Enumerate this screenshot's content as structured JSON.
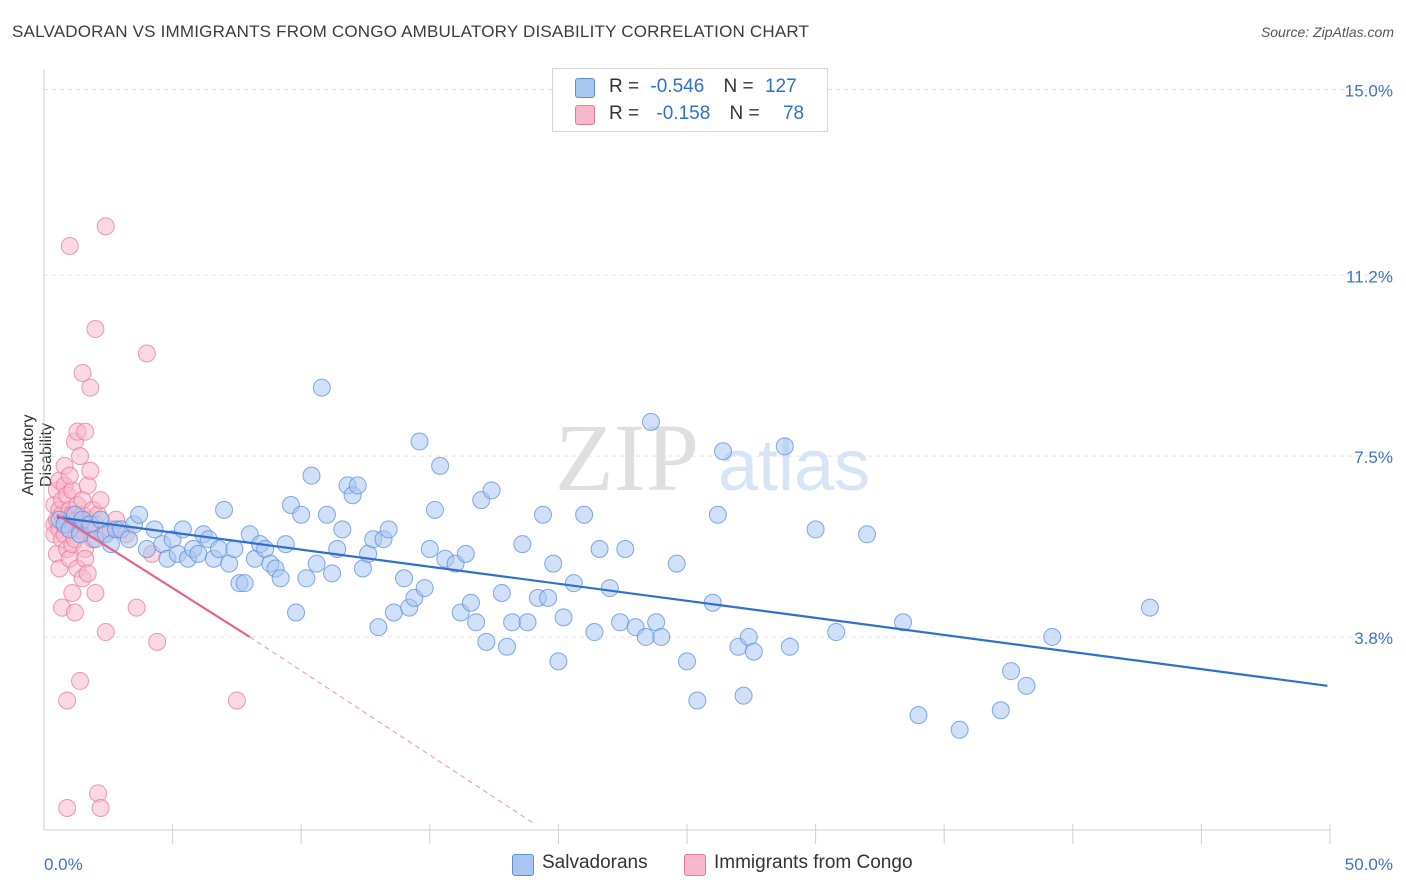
{
  "title": "SALVADORAN VS IMMIGRANTS FROM CONGO AMBULATORY DISABILITY CORRELATION CHART",
  "source": "Source: ZipAtlas.com",
  "watermark": {
    "zip": "ZIP",
    "atlas": "atlas"
  },
  "legend": {
    "rows": [
      {
        "r_label": "R =",
        "r_value": "-0.546",
        "n_label": "N =",
        "n_value": "127",
        "color": "#a9c6f2",
        "border": "#5b8ee0"
      },
      {
        "r_label": "R =",
        "r_value": "-0.158",
        "n_label": "N =",
        "n_value": "78",
        "color": "#f7b8cb",
        "border": "#e8799b"
      }
    ]
  },
  "bottom_legend": [
    {
      "label": "Salvadorans",
      "color": "#a9c6f2",
      "border": "#5b8ee0"
    },
    {
      "label": "Immigrants from Congo",
      "color": "#f7b8cb",
      "border": "#e8799b"
    }
  ],
  "chart_data": {
    "type": "scatter",
    "title": "SALVADORAN VS IMMIGRANTS FROM CONGO AMBULATORY DISABILITY CORRELATION CHART",
    "xlabel": "",
    "ylabel": "Ambulatory Disability",
    "xlim": [
      0,
      50
    ],
    "ylim": [
      -0.15,
      15.4
    ],
    "x_tick_labels": [
      {
        "value": 0,
        "label": "0.0%"
      },
      {
        "value": 50,
        "label": "50.0%"
      }
    ],
    "x_minor_ticks": [
      5,
      10,
      15,
      20,
      25,
      30,
      35,
      40,
      45,
      50
    ],
    "y_ticks": [
      {
        "value": 3.8,
        "label": "3.8%"
      },
      {
        "value": 7.5,
        "label": "7.5%"
      },
      {
        "value": 11.2,
        "label": "11.2%"
      },
      {
        "value": 15.0,
        "label": "15.0%"
      }
    ],
    "grid": true,
    "series": [
      {
        "name": "Salvadorans",
        "color": "#a9c6f2",
        "edge": "#5b8ee0",
        "line_color": "#2f6fd0",
        "trend": {
          "x": [
            0.5,
            49.9
          ],
          "y": [
            6.25,
            2.8
          ]
        },
        "points": [
          [
            0.6,
            6.2
          ],
          [
            0.8,
            6.1
          ],
          [
            1.0,
            6.0
          ],
          [
            1.2,
            6.3
          ],
          [
            1.4,
            5.9
          ],
          [
            1.5,
            6.2
          ],
          [
            1.8,
            6.1
          ],
          [
            2.0,
            5.8
          ],
          [
            2.2,
            6.2
          ],
          [
            2.4,
            5.9
          ],
          [
            2.6,
            5.7
          ],
          [
            2.8,
            6.0
          ],
          [
            3.0,
            6.0
          ],
          [
            3.3,
            5.8
          ],
          [
            3.5,
            6.1
          ],
          [
            3.7,
            6.3
          ],
          [
            4.0,
            5.6
          ],
          [
            4.3,
            6.0
          ],
          [
            4.6,
            5.7
          ],
          [
            4.8,
            5.4
          ],
          [
            5.0,
            5.8
          ],
          [
            5.2,
            5.5
          ],
          [
            5.4,
            6.0
          ],
          [
            5.6,
            5.4
          ],
          [
            5.8,
            5.6
          ],
          [
            6.0,
            5.5
          ],
          [
            6.2,
            5.9
          ],
          [
            6.4,
            5.8
          ],
          [
            6.6,
            5.4
          ],
          [
            6.8,
            5.6
          ],
          [
            7.0,
            6.4
          ],
          [
            7.2,
            5.3
          ],
          [
            7.4,
            5.6
          ],
          [
            7.6,
            4.9
          ],
          [
            7.8,
            4.9
          ],
          [
            8.0,
            5.9
          ],
          [
            8.2,
            5.4
          ],
          [
            8.4,
            5.7
          ],
          [
            8.6,
            5.6
          ],
          [
            8.8,
            5.3
          ],
          [
            9.0,
            5.2
          ],
          [
            9.2,
            5.0
          ],
          [
            9.4,
            5.7
          ],
          [
            9.6,
            6.5
          ],
          [
            9.8,
            4.3
          ],
          [
            10.0,
            6.3
          ],
          [
            10.2,
            5.0
          ],
          [
            10.4,
            7.1
          ],
          [
            10.6,
            5.3
          ],
          [
            10.8,
            8.9
          ],
          [
            11.0,
            6.3
          ],
          [
            11.2,
            5.1
          ],
          [
            11.4,
            5.6
          ],
          [
            11.6,
            6.0
          ],
          [
            11.8,
            6.9
          ],
          [
            12.0,
            6.7
          ],
          [
            12.2,
            6.9
          ],
          [
            12.4,
            5.2
          ],
          [
            12.6,
            5.5
          ],
          [
            12.8,
            5.8
          ],
          [
            13.0,
            4.0
          ],
          [
            13.2,
            5.8
          ],
          [
            13.4,
            6.0
          ],
          [
            13.6,
            4.3
          ],
          [
            14.0,
            5.0
          ],
          [
            14.2,
            4.4
          ],
          [
            14.4,
            4.6
          ],
          [
            14.6,
            7.8
          ],
          [
            14.8,
            4.8
          ],
          [
            15.0,
            5.6
          ],
          [
            15.2,
            6.4
          ],
          [
            15.4,
            7.3
          ],
          [
            15.6,
            5.4
          ],
          [
            16.0,
            5.3
          ],
          [
            16.2,
            4.3
          ],
          [
            16.4,
            5.5
          ],
          [
            16.6,
            4.5
          ],
          [
            16.8,
            4.1
          ],
          [
            17.0,
            6.6
          ],
          [
            17.2,
            3.7
          ],
          [
            17.4,
            6.8
          ],
          [
            17.8,
            4.7
          ],
          [
            18.0,
            3.6
          ],
          [
            18.2,
            4.1
          ],
          [
            18.6,
            5.7
          ],
          [
            18.8,
            4.1
          ],
          [
            19.2,
            4.6
          ],
          [
            19.4,
            6.3
          ],
          [
            19.6,
            4.6
          ],
          [
            19.8,
            5.3
          ],
          [
            20.0,
            3.3
          ],
          [
            20.2,
            4.2
          ],
          [
            20.6,
            4.9
          ],
          [
            21.0,
            6.3
          ],
          [
            21.4,
            3.9
          ],
          [
            21.6,
            5.6
          ],
          [
            22.0,
            4.8
          ],
          [
            22.4,
            4.1
          ],
          [
            22.6,
            5.6
          ],
          [
            23.0,
            4.0
          ],
          [
            23.4,
            3.8
          ],
          [
            23.6,
            8.2
          ],
          [
            23.8,
            4.1
          ],
          [
            24.0,
            3.8
          ],
          [
            24.6,
            5.3
          ],
          [
            25.0,
            3.3
          ],
          [
            25.4,
            2.5
          ],
          [
            26.0,
            4.5
          ],
          [
            26.2,
            6.3
          ],
          [
            26.4,
            7.6
          ],
          [
            27.0,
            3.6
          ],
          [
            27.2,
            2.6
          ],
          [
            27.4,
            3.8
          ],
          [
            27.6,
            3.5
          ],
          [
            28.8,
            7.7
          ],
          [
            29.0,
            3.6
          ],
          [
            30.0,
            6.0
          ],
          [
            30.8,
            3.9
          ],
          [
            32.0,
            5.9
          ],
          [
            33.4,
            4.1
          ],
          [
            34.0,
            2.2
          ],
          [
            35.6,
            1.9
          ],
          [
            37.2,
            2.3
          ],
          [
            37.6,
            3.1
          ],
          [
            38.2,
            2.8
          ],
          [
            39.2,
            3.8
          ],
          [
            43.0,
            4.4
          ]
        ]
      },
      {
        "name": "Immigrants from Congo",
        "color": "#f7b8cb",
        "edge": "#e8799b",
        "line_color": "#e0658f",
        "trend": {
          "x": [
            0.5,
            8.0
          ],
          "y": [
            6.3,
            3.8
          ]
        },
        "trend_dashed": {
          "x": [
            8.0,
            19.0
          ],
          "y": [
            3.8,
            0.0
          ]
        },
        "points": [
          [
            0.4,
            6.1
          ],
          [
            0.4,
            6.5
          ],
          [
            0.4,
            5.9
          ],
          [
            0.5,
            6.8
          ],
          [
            0.5,
            6.2
          ],
          [
            0.5,
            5.5
          ],
          [
            0.6,
            6.4
          ],
          [
            0.6,
            6.0
          ],
          [
            0.6,
            7.0
          ],
          [
            0.6,
            5.2
          ],
          [
            0.7,
            6.3
          ],
          [
            0.7,
            5.8
          ],
          [
            0.7,
            6.6
          ],
          [
            0.7,
            4.4
          ],
          [
            0.8,
            6.1
          ],
          [
            0.8,
            5.9
          ],
          [
            0.8,
            6.9
          ],
          [
            0.8,
            7.3
          ],
          [
            0.9,
            6.2
          ],
          [
            0.9,
            5.6
          ],
          [
            0.9,
            6.7
          ],
          [
            0.9,
            2.5
          ],
          [
            0.9,
            0.3
          ],
          [
            1.0,
            6.0
          ],
          [
            1.0,
            6.4
          ],
          [
            1.0,
            5.4
          ],
          [
            1.0,
            11.8
          ],
          [
            1.1,
            6.3
          ],
          [
            1.1,
            5.7
          ],
          [
            1.1,
            6.8
          ],
          [
            1.1,
            4.7
          ],
          [
            1.2,
            6.1
          ],
          [
            1.2,
            7.8
          ],
          [
            1.2,
            5.8
          ],
          [
            1.2,
            4.3
          ],
          [
            1.3,
            6.2
          ],
          [
            1.3,
            6.5
          ],
          [
            1.3,
            8.0
          ],
          [
            1.3,
            5.2
          ],
          [
            1.4,
            6.0
          ],
          [
            1.4,
            5.9
          ],
          [
            1.4,
            7.5
          ],
          [
            1.4,
            2.9
          ],
          [
            1.5,
            6.3
          ],
          [
            1.5,
            6.6
          ],
          [
            1.5,
            9.2
          ],
          [
            1.5,
            5.0
          ],
          [
            1.6,
            6.1
          ],
          [
            1.6,
            5.6
          ],
          [
            1.6,
            5.4
          ],
          [
            1.7,
            6.2
          ],
          [
            1.7,
            6.9
          ],
          [
            1.7,
            5.1
          ],
          [
            1.8,
            8.9
          ],
          [
            1.8,
            6.0
          ],
          [
            1.8,
            7.2
          ],
          [
            1.9,
            6.4
          ],
          [
            1.9,
            5.8
          ],
          [
            2.0,
            10.1
          ],
          [
            2.0,
            6.1
          ],
          [
            2.0,
            4.7
          ],
          [
            2.1,
            6.3
          ],
          [
            2.1,
            0.6
          ],
          [
            2.2,
            6.6
          ],
          [
            2.2,
            0.3
          ],
          [
            2.3,
            5.9
          ],
          [
            2.4,
            12.2
          ],
          [
            2.4,
            3.9
          ],
          [
            2.6,
            6.0
          ],
          [
            2.8,
            6.2
          ],
          [
            3.2,
            5.9
          ],
          [
            3.6,
            4.4
          ],
          [
            4.0,
            9.6
          ],
          [
            4.2,
            5.5
          ],
          [
            4.4,
            3.7
          ],
          [
            7.5,
            2.5
          ],
          [
            1.6,
            8.0
          ],
          [
            1.0,
            7.1
          ]
        ]
      }
    ]
  }
}
